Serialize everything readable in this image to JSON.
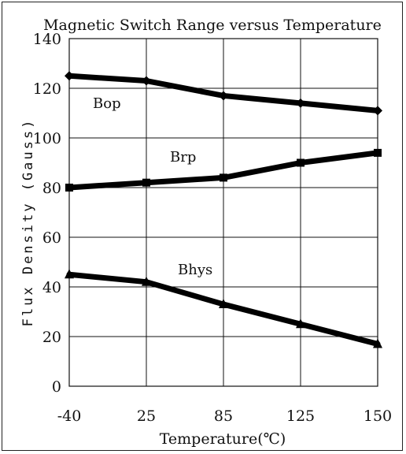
{
  "chart_data": {
    "type": "line",
    "title": "Magnetic Switch Range versus Temperature",
    "xlabel": "Temperature(℃)",
    "ylabel": "Flux Density (Gauss)",
    "categories": [
      "-40",
      "25",
      "85",
      "125",
      "150"
    ],
    "ylim": [
      0,
      140
    ],
    "yticks": [
      "0",
      "20",
      "40",
      "60",
      "80",
      "100",
      "120",
      "140"
    ],
    "grid": true,
    "series": [
      {
        "name": "Bop",
        "marker": "diamond",
        "values": [
          125,
          123,
          117,
          114,
          111
        ]
      },
      {
        "name": "Brp",
        "marker": "square",
        "values": [
          80,
          82,
          84,
          90,
          94
        ]
      },
      {
        "name": "Bhys",
        "marker": "triangle",
        "values": [
          45,
          42,
          33,
          25,
          17
        ]
      }
    ]
  }
}
